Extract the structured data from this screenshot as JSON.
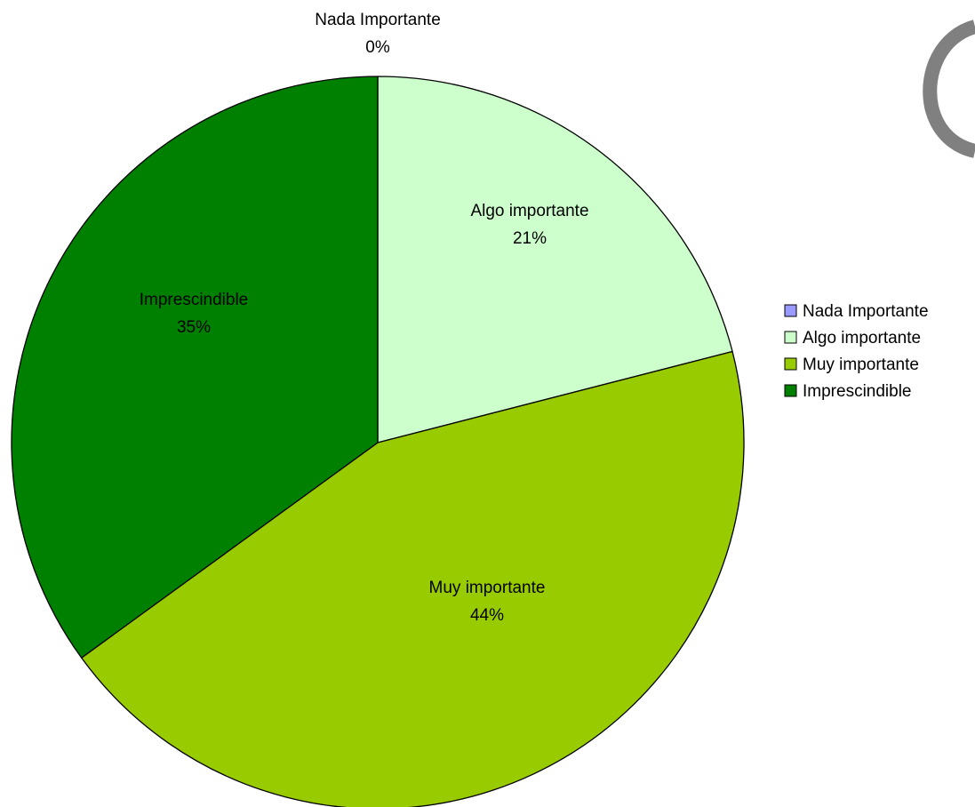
{
  "chart_data": {
    "type": "pie",
    "categories": [
      "Nada Importante",
      "Algo importante",
      "Muy importante",
      "Imprescindible"
    ],
    "values": [
      0,
      21,
      44,
      35
    ],
    "value_labels": [
      "0%",
      "21%",
      "44%",
      "35%"
    ],
    "colors": [
      "#9999ff",
      "#ccffcc",
      "#99cc00",
      "#008000"
    ],
    "legend_position": "right",
    "start_angle_deg": 0,
    "direction": "clockwise"
  }
}
